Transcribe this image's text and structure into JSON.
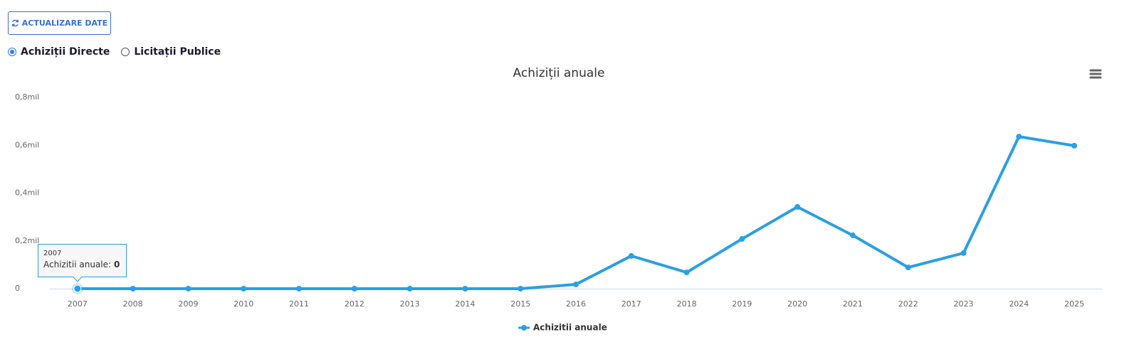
{
  "button": {
    "label": "ACTUALIZARE DATE"
  },
  "radios": [
    {
      "label": "Achiziții Directe",
      "selected": true
    },
    {
      "label": "Licitații Publice",
      "selected": false
    }
  ],
  "tooltip": {
    "series_label": "Achizitii anuale:"
  },
  "chart_data": {
    "type": "line",
    "title": "Achiziții anuale",
    "categories": [
      "2007",
      "2008",
      "2009",
      "2010",
      "2011",
      "2012",
      "2013",
      "2014",
      "2015",
      "2016",
      "2017",
      "2018",
      "2019",
      "2020",
      "2021",
      "2022",
      "2023",
      "2024",
      "2025"
    ],
    "series": [
      {
        "name": "Achizitii anuale",
        "color": "#2b9fe3",
        "values": [
          0,
          0,
          0,
          0,
          0,
          0,
          0,
          0,
          0,
          18000,
          137000,
          68000,
          208000,
          342000,
          223000,
          89000,
          149000,
          636000,
          598000
        ]
      }
    ],
    "ylim": [
      0,
      800000
    ],
    "yticks": [
      0,
      {
        "value": 200000,
        "label": "0,2mil"
      },
      {
        "value": 400000,
        "label": "0,4mil"
      },
      {
        "value": 600000,
        "label": "0,6mil"
      },
      {
        "value": 800000,
        "label": "0,8mil"
      }
    ],
    "grid": false,
    "legend": "bottom"
  }
}
